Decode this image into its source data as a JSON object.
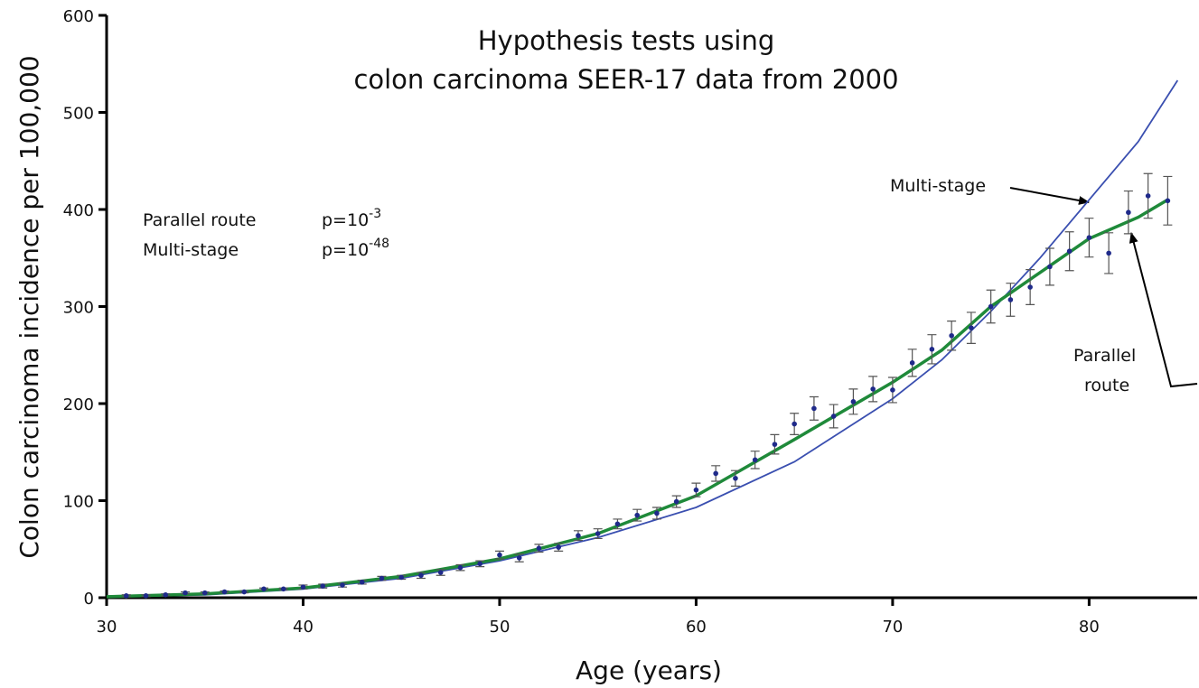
{
  "chart_data": {
    "type": "scatter",
    "title": [
      "Hypothesis tests using",
      "colon carcinoma SEER-17 data from 2000"
    ],
    "x_label": "Age (years)",
    "y_label": "Colon carcinoma incidence per 100,000",
    "xlim": [
      30,
      85.5
    ],
    "ylim": [
      0,
      600
    ],
    "xticks": [
      30,
      40,
      50,
      60,
      70,
      80
    ],
    "yticks": [
      0,
      100,
      200,
      300,
      400,
      500,
      600
    ],
    "points": {
      "color": "#1f2a8a",
      "x": [
        31,
        32,
        33,
        34,
        35,
        36,
        37,
        38,
        39,
        40,
        41,
        42,
        43,
        44,
        45,
        46,
        47,
        48,
        49,
        50,
        51,
        52,
        53,
        54,
        55,
        56,
        57,
        58,
        59,
        60,
        61,
        62,
        63,
        64,
        65,
        66,
        67,
        68,
        69,
        70,
        71,
        72,
        73,
        74,
        75,
        76,
        77,
        78,
        79,
        80,
        81,
        82,
        83,
        84
      ],
      "values": [
        2,
        2,
        3,
        5,
        5,
        6,
        6,
        9,
        9,
        11,
        12,
        13,
        16,
        20,
        21,
        23,
        26,
        31,
        35,
        44,
        41,
        51,
        52,
        64,
        66,
        76,
        85,
        87,
        99,
        111,
        128,
        123,
        142,
        158,
        179,
        195,
        187,
        202,
        215,
        214,
        242,
        256,
        270,
        278,
        300,
        307,
        320,
        341,
        357,
        371,
        355,
        397,
        414,
        409
      ],
      "errors": [
        1,
        1,
        1,
        1,
        1,
        1,
        1,
        1,
        1,
        2,
        2,
        2,
        2,
        2,
        2,
        3,
        3,
        3,
        3,
        4,
        4,
        4,
        4,
        5,
        5,
        5,
        6,
        6,
        6,
        7,
        8,
        8,
        9,
        10,
        11,
        12,
        12,
        13,
        13,
        13,
        14,
        15,
        15,
        16,
        17,
        17,
        18,
        19,
        20,
        20,
        21,
        22,
        23,
        25
      ]
    },
    "lines": [
      {
        "name": "Multi-stage",
        "color": "#3a4fb0",
        "x": [
          30,
          35,
          40,
          45,
          50,
          55,
          60,
          65,
          70,
          72.5,
          75,
          77.5,
          80,
          82.5,
          84.5
        ],
        "values": [
          1,
          3,
          9,
          20,
          38,
          62,
          93,
          140,
          205,
          245,
          295,
          350,
          410,
          470,
          533
        ]
      },
      {
        "name": "Parallel route",
        "label": [
          "Parallel",
          "route"
        ],
        "color": "#1f8a3a",
        "x": [
          30,
          35,
          40,
          45,
          50,
          55,
          60,
          65,
          70,
          72.5,
          75,
          77.5,
          80,
          82.5,
          84
        ],
        "values": [
          1,
          4,
          10,
          22,
          40,
          66,
          105,
          163,
          222,
          255,
          300,
          335,
          370,
          392,
          410
        ]
      }
    ],
    "stats": [
      {
        "label": "Parallel route",
        "p": "p=10",
        "exp": "-3"
      },
      {
        "label": "Multi-stage",
        "p": "p=10",
        "exp": "-48"
      }
    ]
  }
}
